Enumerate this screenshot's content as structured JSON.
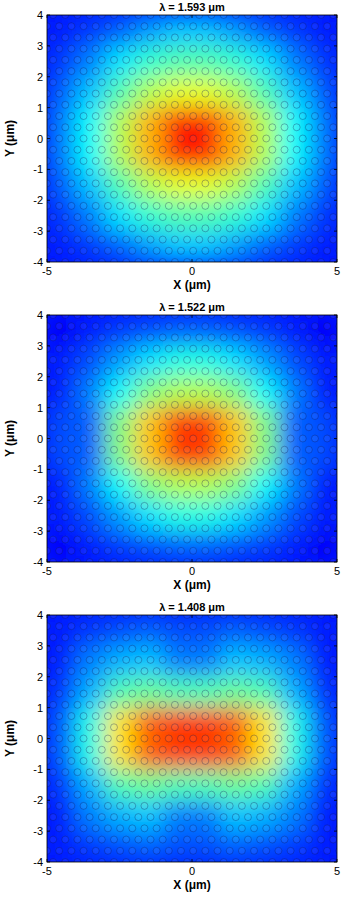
{
  "chart_data": [
    {
      "type": "heatmap",
      "title": "λ = 1.593 μm",
      "x_label": "X (μm)",
      "y_label": "Y (μm)",
      "xlim": [
        -5,
        5
      ],
      "ylim": [
        -4,
        4
      ],
      "xticks": [
        -5,
        0,
        5
      ],
      "yticks": [
        -4,
        -3,
        -2,
        -1,
        0,
        1,
        2,
        3,
        4
      ],
      "clim": [
        0,
        1
      ],
      "x": [
        -4.5,
        -3.5,
        -2.5,
        -1.5,
        -0.5,
        0.5,
        1.5,
        2.5,
        3.5,
        4.5
      ],
      "y": [
        3.5,
        2.5,
        1.5,
        0.5,
        -0.5,
        -1.5,
        -2.5,
        -3.5
      ],
      "values": [
        [
          0.15,
          0.18,
          0.22,
          0.28,
          0.32,
          0.32,
          0.28,
          0.22,
          0.18,
          0.15
        ],
        [
          0.18,
          0.25,
          0.35,
          0.42,
          0.45,
          0.45,
          0.42,
          0.35,
          0.25,
          0.18
        ],
        [
          0.22,
          0.32,
          0.45,
          0.55,
          0.6,
          0.6,
          0.55,
          0.45,
          0.32,
          0.22
        ],
        [
          0.25,
          0.38,
          0.55,
          0.7,
          0.85,
          0.85,
          0.7,
          0.55,
          0.38,
          0.25
        ],
        [
          0.25,
          0.38,
          0.55,
          0.7,
          0.85,
          0.85,
          0.7,
          0.55,
          0.38,
          0.25
        ],
        [
          0.22,
          0.32,
          0.45,
          0.55,
          0.6,
          0.6,
          0.55,
          0.45,
          0.32,
          0.22
        ],
        [
          0.18,
          0.25,
          0.35,
          0.42,
          0.45,
          0.45,
          0.42,
          0.35,
          0.25,
          0.18
        ],
        [
          0.15,
          0.18,
          0.22,
          0.28,
          0.32,
          0.32,
          0.28,
          0.22,
          0.18,
          0.15
        ]
      ]
    },
    {
      "type": "heatmap",
      "title": "λ = 1.522 μm",
      "x_label": "X (μm)",
      "y_label": "Y (μm)",
      "xlim": [
        -5,
        5
      ],
      "ylim": [
        -4,
        4
      ],
      "xticks": [
        -5,
        0,
        5
      ],
      "yticks": [
        -4,
        -3,
        -2,
        -1,
        0,
        1,
        2,
        3,
        4
      ],
      "clim": [
        0,
        1
      ],
      "x": [
        -4.5,
        -3.5,
        -2.5,
        -1.5,
        -0.5,
        0.5,
        1.5,
        2.5,
        3.5,
        4.5
      ],
      "y": [
        3.5,
        2.5,
        1.5,
        0.5,
        -0.5,
        -1.5,
        -2.5,
        -3.5
      ],
      "values": [
        [
          0.12,
          0.15,
          0.18,
          0.2,
          0.22,
          0.22,
          0.2,
          0.18,
          0.15,
          0.12
        ],
        [
          0.15,
          0.2,
          0.28,
          0.35,
          0.4,
          0.4,
          0.35,
          0.28,
          0.2,
          0.15
        ],
        [
          0.15,
          0.25,
          0.38,
          0.5,
          0.55,
          0.55,
          0.5,
          0.38,
          0.25,
          0.15
        ],
        [
          0.2,
          0.22,
          0.5,
          0.68,
          0.82,
          0.82,
          0.68,
          0.5,
          0.22,
          0.2
        ],
        [
          0.2,
          0.22,
          0.5,
          0.68,
          0.82,
          0.82,
          0.68,
          0.5,
          0.22,
          0.2
        ],
        [
          0.15,
          0.25,
          0.38,
          0.5,
          0.55,
          0.55,
          0.5,
          0.38,
          0.25,
          0.15
        ],
        [
          0.15,
          0.2,
          0.28,
          0.35,
          0.4,
          0.4,
          0.35,
          0.28,
          0.2,
          0.15
        ],
        [
          0.12,
          0.15,
          0.18,
          0.2,
          0.22,
          0.22,
          0.2,
          0.18,
          0.15,
          0.12
        ]
      ]
    },
    {
      "type": "heatmap",
      "title": "λ = 1.408 μm",
      "x_label": "X (μm)",
      "y_label": "Y (μm)",
      "xlim": [
        -5,
        5
      ],
      "ylim": [
        -4,
        4
      ],
      "xticks": [
        -5,
        0,
        5
      ],
      "yticks": [
        -4,
        -3,
        -2,
        -1,
        0,
        1,
        2,
        3,
        4
      ],
      "clim": [
        0,
        1
      ],
      "x": [
        -4.5,
        -3.5,
        -2.5,
        -1.5,
        -0.5,
        0.5,
        1.5,
        2.5,
        3.5,
        4.5
      ],
      "y": [
        3.5,
        2.5,
        1.5,
        0.5,
        -0.5,
        -1.5,
        -2.5,
        -3.5
      ],
      "values": [
        [
          0.15,
          0.18,
          0.2,
          0.22,
          0.2,
          0.2,
          0.22,
          0.2,
          0.18,
          0.15
        ],
        [
          0.15,
          0.25,
          0.3,
          0.32,
          0.25,
          0.25,
          0.32,
          0.3,
          0.25,
          0.15
        ],
        [
          0.18,
          0.3,
          0.45,
          0.48,
          0.45,
          0.45,
          0.48,
          0.45,
          0.3,
          0.18
        ],
        [
          0.22,
          0.4,
          0.65,
          0.78,
          0.82,
          0.82,
          0.78,
          0.65,
          0.4,
          0.22
        ],
        [
          0.22,
          0.4,
          0.65,
          0.78,
          0.82,
          0.82,
          0.78,
          0.65,
          0.4,
          0.22
        ],
        [
          0.18,
          0.3,
          0.45,
          0.48,
          0.45,
          0.45,
          0.48,
          0.45,
          0.3,
          0.18
        ],
        [
          0.15,
          0.25,
          0.3,
          0.32,
          0.25,
          0.25,
          0.32,
          0.3,
          0.25,
          0.15
        ],
        [
          0.15,
          0.18,
          0.2,
          0.22,
          0.2,
          0.2,
          0.22,
          0.2,
          0.18,
          0.15
        ]
      ]
    }
  ]
}
